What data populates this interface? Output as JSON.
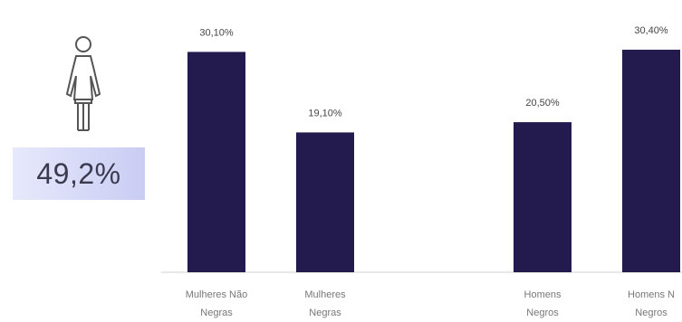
{
  "highlight": {
    "icon": "female-person-icon",
    "value_text": "49,2%",
    "box_color": "#d6d9f7"
  },
  "chart_data": {
    "type": "bar",
    "categories": [
      [
        "Mulheres Não",
        "Negras"
      ],
      [
        "Mulheres",
        "Negras"
      ],
      [
        "",
        ""
      ],
      [
        "Homens",
        "Negros"
      ],
      [
        "Homens N",
        "Negros"
      ]
    ],
    "values": [
      30.1,
      19.1,
      null,
      20.5,
      30.4
    ],
    "value_labels": [
      "30,10%",
      "19,10%",
      "",
      "20,50%",
      "30,40%"
    ],
    "ylim": [
      0,
      32
    ],
    "bar_color": "#231a4e",
    "grid": false
  }
}
